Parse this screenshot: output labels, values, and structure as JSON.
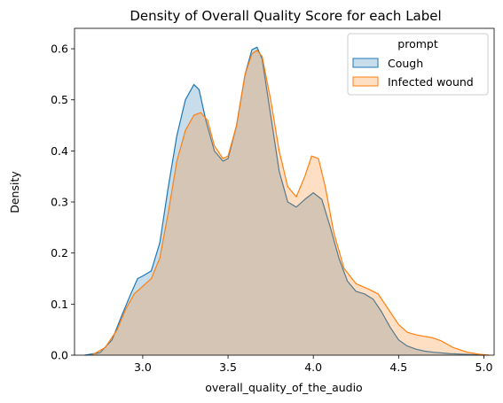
{
  "chart_data": {
    "type": "area",
    "title": "Density of Overall Quality Score for each Label",
    "xlabel": "overall_quality_of_the_audio",
    "ylabel": "Density",
    "xlim": [
      2.6,
      5.06
    ],
    "ylim": [
      0,
      0.64
    ],
    "xticks": [
      3.0,
      3.5,
      4.0,
      4.5,
      5.0
    ],
    "xtick_labels": [
      "3.0",
      "3.5",
      "4.0",
      "4.5",
      "5.0"
    ],
    "yticks": [
      0.0,
      0.1,
      0.2,
      0.3,
      0.4,
      0.5,
      0.6
    ],
    "ytick_labels": [
      "0.0",
      "0.1",
      "0.2",
      "0.3",
      "0.4",
      "0.5",
      "0.6"
    ],
    "grid": false,
    "legend": {
      "title": "prompt",
      "placement": "top-right"
    },
    "series": [
      {
        "name": "Cough",
        "color": "#1f77b4",
        "x": [
          2.66,
          2.75,
          2.82,
          2.88,
          2.93,
          2.97,
          3.0,
          3.05,
          3.1,
          3.15,
          3.2,
          3.25,
          3.3,
          3.33,
          3.37,
          3.42,
          3.47,
          3.5,
          3.55,
          3.6,
          3.64,
          3.67,
          3.7,
          3.75,
          3.8,
          3.85,
          3.9,
          3.95,
          4.0,
          4.05,
          4.1,
          4.15,
          4.2,
          4.25,
          4.3,
          4.35,
          4.4,
          4.45,
          4.5,
          4.55,
          4.6,
          4.65,
          4.7,
          4.8,
          4.9,
          5.0
        ],
        "y": [
          0.0,
          0.005,
          0.03,
          0.08,
          0.12,
          0.15,
          0.155,
          0.165,
          0.22,
          0.33,
          0.43,
          0.5,
          0.53,
          0.52,
          0.46,
          0.4,
          0.38,
          0.385,
          0.45,
          0.55,
          0.598,
          0.603,
          0.58,
          0.47,
          0.36,
          0.3,
          0.29,
          0.305,
          0.318,
          0.305,
          0.25,
          0.19,
          0.145,
          0.125,
          0.12,
          0.11,
          0.085,
          0.055,
          0.03,
          0.018,
          0.012,
          0.008,
          0.006,
          0.003,
          0.0015,
          0.0
        ]
      },
      {
        "name": "Infected wound",
        "color": "#ff7f0e",
        "x": [
          2.7,
          2.78,
          2.85,
          2.9,
          2.95,
          3.0,
          3.05,
          3.1,
          3.15,
          3.2,
          3.25,
          3.3,
          3.34,
          3.38,
          3.42,
          3.47,
          3.5,
          3.55,
          3.6,
          3.64,
          3.67,
          3.7,
          3.75,
          3.8,
          3.85,
          3.9,
          3.95,
          3.99,
          4.03,
          4.07,
          4.12,
          4.18,
          4.25,
          4.32,
          4.38,
          4.43,
          4.5,
          4.55,
          4.6,
          4.65,
          4.7,
          4.75,
          4.82,
          4.9,
          4.97,
          5.03
        ],
        "y": [
          0.0,
          0.015,
          0.05,
          0.09,
          0.12,
          0.135,
          0.15,
          0.19,
          0.28,
          0.38,
          0.44,
          0.47,
          0.475,
          0.46,
          0.41,
          0.385,
          0.39,
          0.45,
          0.55,
          0.59,
          0.597,
          0.585,
          0.5,
          0.4,
          0.33,
          0.31,
          0.35,
          0.39,
          0.385,
          0.33,
          0.24,
          0.17,
          0.14,
          0.13,
          0.12,
          0.095,
          0.06,
          0.045,
          0.04,
          0.037,
          0.034,
          0.028,
          0.015,
          0.006,
          0.002,
          0.0
        ]
      }
    ]
  }
}
